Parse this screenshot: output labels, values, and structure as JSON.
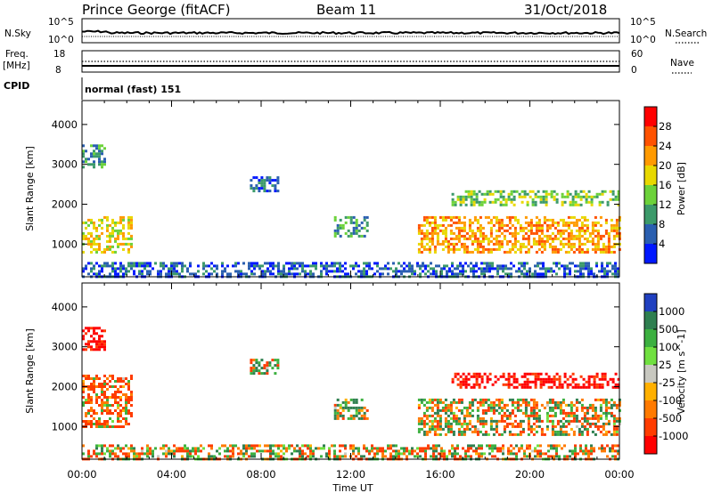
{
  "header": {
    "station": "Prince George (fitACF)",
    "beam": "Beam 11",
    "date": "31/Oct/2018"
  },
  "status_panels": {
    "nsky_label": "N.Sky",
    "nsky_ticks": [
      "10^5",
      "10^0"
    ],
    "nsearch_label": "N.Search",
    "nsearch_ticks": [
      "10^5",
      "10^0"
    ],
    "freq_label_line1": "Freq.",
    "freq_label_line2": "[MHz]",
    "freq_ticks": [
      "18",
      "8"
    ],
    "nave_label": "Nave",
    "nave_ticks": [
      "60",
      "0"
    ],
    "cpid_label": "CPID",
    "cpid_value": "normal (fast) 151"
  },
  "chart_data": [
    {
      "type": "heatmap",
      "name": "power",
      "ylabel": "Slant Range [km]",
      "yticks": [
        1000,
        2000,
        3000,
        4000
      ],
      "ylim": [
        180,
        4600
      ],
      "colorbar_label": "Power [dB]",
      "colorbar_ticks": [
        "4",
        "8",
        "12",
        "16",
        "20",
        "24",
        "28"
      ],
      "colors": [
        "#0018ff",
        "#2a5fb0",
        "#3c9a6a",
        "#6cd23a",
        "#e8d800",
        "#ff9a00",
        "#ff5200",
        "#ff0000"
      ],
      "clusters": [
        {
          "start": "00:00",
          "end": "02:15",
          "range": [
            800,
            1700
          ],
          "value": 18
        },
        {
          "start": "00:00",
          "end": "01:00",
          "range": [
            2900,
            3500
          ],
          "value": 10
        },
        {
          "start": "00:00",
          "end": "24:00",
          "range": [
            200,
            550
          ],
          "value": 6
        },
        {
          "start": "07:30",
          "end": "08:45",
          "range": [
            2300,
            2700
          ],
          "value": 6
        },
        {
          "start": "11:15",
          "end": "12:45",
          "range": [
            1200,
            1700
          ],
          "value": 10
        },
        {
          "start": "15:00",
          "end": "24:00",
          "range": [
            800,
            1700
          ],
          "value": 22
        },
        {
          "start": "16:30",
          "end": "24:00",
          "range": [
            2000,
            2350
          ],
          "value": 14
        }
      ]
    },
    {
      "type": "heatmap",
      "name": "velocity",
      "ylabel": "Slant Range [km]",
      "yticks": [
        1000,
        2000,
        3000,
        4000
      ],
      "ylim": [
        180,
        4600
      ],
      "xlabel": "Time UT",
      "xticks": [
        "00:00",
        "04:00",
        "08:00",
        "12:00",
        "16:00",
        "20:00",
        "00:00"
      ],
      "colorbar_label": "Velocity [m s^-1]",
      "colorbar_ticks": [
        "1000",
        "500",
        "100",
        "25",
        "-25",
        "-100",
        "-500",
        "-1000"
      ],
      "colors": [
        "#2040c0",
        "#2f7f50",
        "#3cb040",
        "#70e040",
        "#c8c8c0",
        "#ffb000",
        "#ff7a00",
        "#ff3c00",
        "#ff0000"
      ],
      "clusters": [
        {
          "start": "00:00",
          "end": "02:15",
          "range": [
            1000,
            2300
          ],
          "value": -100
        },
        {
          "start": "00:00",
          "end": "01:00",
          "range": [
            2900,
            3500
          ],
          "value": -500
        },
        {
          "start": "00:00",
          "end": "24:00",
          "range": [
            200,
            550
          ],
          "value": -25
        },
        {
          "start": "07:30",
          "end": "08:45",
          "range": [
            2300,
            2700
          ],
          "value": 0
        },
        {
          "start": "11:15",
          "end": "12:45",
          "range": [
            1200,
            1700
          ],
          "value": 50
        },
        {
          "start": "15:00",
          "end": "24:00",
          "range": [
            800,
            1700
          ],
          "value": 0
        },
        {
          "start": "16:30",
          "end": "24:00",
          "range": [
            2000,
            2350
          ],
          "value": -500
        }
      ]
    }
  ]
}
